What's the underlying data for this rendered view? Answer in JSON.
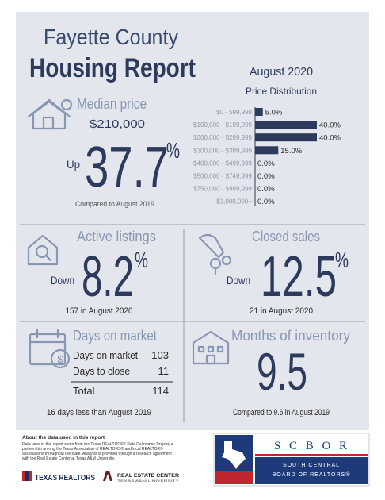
{
  "header": {
    "title_line1": "Fayette County",
    "title_line2": "Housing Report",
    "period": "August 2020"
  },
  "median_price": {
    "title": "Median price",
    "value": "$210,000",
    "direction": "Up",
    "change": "37.7",
    "unit": "%",
    "note": "Compared to August 2019"
  },
  "price_distribution": {
    "title": "Price Distribution",
    "ranges": [
      "$0 - $99,999",
      "$100,000 - $199,999",
      "$200,000 - $299,999",
      "$300,000 - $399,999",
      "$400,000 - $499,999",
      "$500,000 - $749,999",
      "$750,000 - $999,999",
      "$1,000,000+"
    ],
    "values": [
      5,
      40,
      40,
      15,
      0,
      0,
      0,
      0
    ],
    "value_labels": [
      "5.0%",
      "40.0%",
      "40.0%",
      "15.0%",
      "0.0%",
      "0.0%",
      "0.0%",
      "0.0%"
    ],
    "color": "#2d3a5c"
  },
  "active_listings": {
    "title": "Active listings",
    "direction": "Down",
    "change": "8.2",
    "unit": "%",
    "note": "157 in August 2020"
  },
  "closed_sales": {
    "title": "Closed sales",
    "direction": "Down",
    "change": "12.5",
    "unit": "%",
    "note": "21 in August 2020"
  },
  "days_on_market": {
    "title": "Days on market",
    "rows": [
      [
        "Days on market",
        103
      ],
      [
        "Days to close",
        11
      ]
    ],
    "total": [
      "Total",
      114
    ],
    "note": "16 days less than August 2019"
  },
  "months_of_inventory": {
    "title": "Months of inventory",
    "value": "9.5",
    "note": "Compared to 9.6 in August 2019"
  },
  "footer": {
    "about_title": "About the data used in this report",
    "about_lines": [
      "Data used in this report come from the Texas REALTORS® Data Relevance Project, a",
      "partnership among the Texas Association of REALTORS® and local REALTOR®",
      "associations throughout the state. Analysis is provided through a research agreement",
      "with the Real Estate Center at Texas A&M University."
    ],
    "logo_texas_realtors": "TEXAS REALTORS",
    "logo_rec": "REAL ESTATE CENTER",
    "logo_rec_sub": "TEXAS A&M UNIVERSITY",
    "logo_scbor": "SCBOR",
    "logo_scbor_line1": "SOUTH CENTRAL",
    "logo_scbor_line2": "BOARD OF REALTORS®"
  }
}
